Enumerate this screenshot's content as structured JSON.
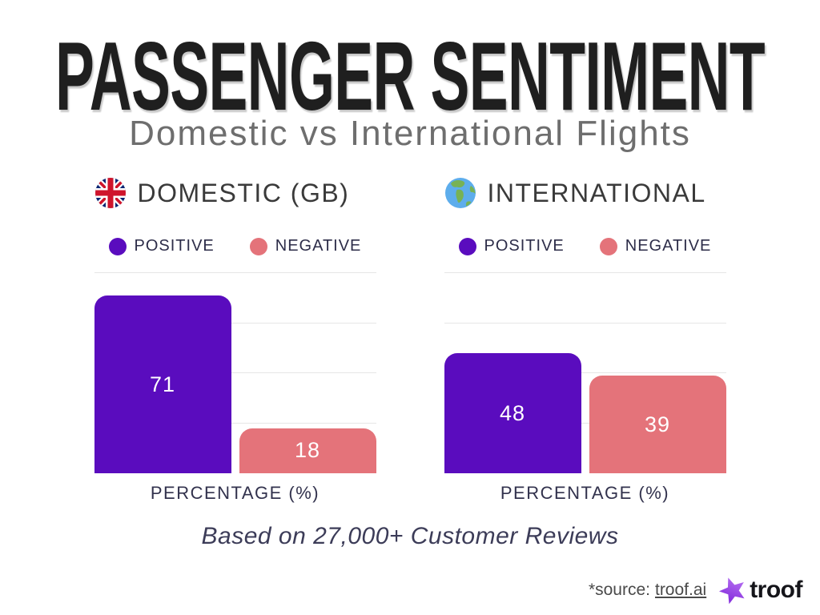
{
  "page": {
    "title": "PASSENGER SENTIMENT",
    "subtitle": "Domestic vs International Flights",
    "footnote": "Based on 27,000+ Customer Reviews",
    "source_prefix": "*source:",
    "source_link": "troof.ai",
    "brand_name": "troof",
    "background": "#ffffff"
  },
  "colors": {
    "positive": "#5A0CBE",
    "negative": "#E4737A",
    "title_text": "#1f1f1f",
    "subtitle_text": "#6e6e6e",
    "label_text": "#32324d",
    "gridline": "#e6e6e6",
    "brand_star_light": "#c07df6",
    "brand_star_dark": "#7b21d8"
  },
  "chart_data": [
    {
      "type": "bar",
      "title": "DOMESTIC (GB)",
      "icon": "uk-flag",
      "categories": [
        "POSITIVE",
        "NEGATIVE"
      ],
      "values": [
        71,
        18
      ],
      "colors": [
        "#5A0CBE",
        "#E4737A"
      ],
      "xlabel": "PERCENTAGE (%)",
      "ylim": [
        0,
        80
      ],
      "gridlines": [
        20,
        40,
        60,
        80
      ],
      "grid": true,
      "legend_position": "top-left",
      "value_labels": "inside-center-white"
    },
    {
      "type": "bar",
      "title": "INTERNATIONAL",
      "icon": "globe-americas",
      "categories": [
        "POSITIVE",
        "NEGATIVE"
      ],
      "values": [
        48,
        39
      ],
      "colors": [
        "#5A0CBE",
        "#E4737A"
      ],
      "xlabel": "PERCENTAGE (%)",
      "ylim": [
        0,
        80
      ],
      "gridlines": [
        20,
        40,
        60,
        80
      ],
      "grid": true,
      "legend_position": "top-left",
      "value_labels": "inside-center-white"
    }
  ]
}
